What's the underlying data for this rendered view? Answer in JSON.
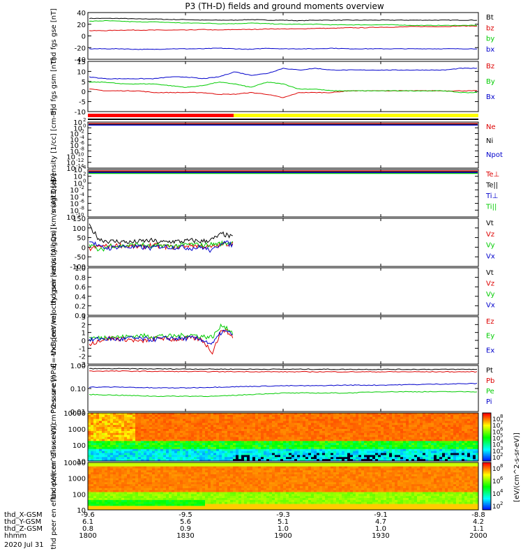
{
  "title": "P3 (TH-D) fields and ground moments overview",
  "time_axis": {
    "ticks": [
      {
        "hhmm": "1800",
        "x_gsm": "-9.6",
        "y_gsm": "6.1",
        "z_gsm": "0.8"
      },
      {
        "hhmm": "1830",
        "x_gsm": "-9.5",
        "y_gsm": "5.6",
        "z_gsm": "0.9"
      },
      {
        "hhmm": "1900",
        "x_gsm": "-9.3",
        "y_gsm": "5.1",
        "z_gsm": "1.0"
      },
      {
        "hhmm": "1930",
        "x_gsm": "-9.1",
        "y_gsm": "4.7",
        "z_gsm": "1.0"
      },
      {
        "hhmm": "2000",
        "x_gsm": "-8.8",
        "y_gsm": "4.2",
        "z_gsm": "1.1"
      }
    ],
    "row_labels": [
      "thd_X-GSM",
      "thd_Y-GSM",
      "thd_Z-GSM",
      "hhmm"
    ],
    "date": "2020 Jul 31"
  },
  "colorbar_label": "[eV/(cm^2-s-sr-eV)]",
  "chart_data": [
    {
      "type": "line",
      "ylabel": "thd fgs gse [nT]",
      "ylim": [
        -40,
        40
      ],
      "yticks": [
        "40",
        "20",
        "0",
        "-20",
        "-40"
      ],
      "series": [
        {
          "name": "Bt",
          "color": "#000000",
          "values": [
            30,
            30,
            30,
            29,
            29,
            28,
            28,
            27,
            27,
            27,
            28,
            27,
            27,
            26,
            27,
            27,
            27,
            27,
            27,
            27,
            27,
            27,
            27,
            27,
            27
          ]
        },
        {
          "name": "bz",
          "color": "#dd0000",
          "values": [
            9,
            9,
            10,
            10,
            10,
            10,
            10,
            11,
            10,
            11,
            11,
            12,
            12,
            12,
            13,
            13,
            14,
            14,
            15,
            15,
            16,
            16,
            16,
            17,
            17
          ]
        },
        {
          "name": "by",
          "color": "#00cc00",
          "values": [
            25,
            26,
            25,
            24,
            24,
            23,
            22,
            22,
            21,
            21,
            22,
            21,
            20,
            20,
            20,
            19,
            19,
            19,
            19,
            19,
            18,
            18,
            18,
            18,
            18
          ]
        },
        {
          "name": "bx",
          "color": "#0000cc",
          "values": [
            -22,
            -22,
            -22,
            -23,
            -23,
            -22,
            -22,
            -22,
            -21,
            -22,
            -23,
            -21,
            -22,
            -22,
            -22,
            -21,
            -22,
            -22,
            -22,
            -22,
            -22,
            -22,
            -22,
            -22,
            -22
          ]
        }
      ]
    },
    {
      "type": "line",
      "ylabel": "thd fgs gsm [nT]",
      "ylim": [
        -14,
        15
      ],
      "yticks": [
        "15",
        "10",
        "5",
        "0",
        "-5",
        "-10"
      ],
      "series": [
        {
          "name": "Bz",
          "color": "#dd0000",
          "values": [
            -1,
            -2,
            -2,
            -2,
            -3,
            -3,
            -3,
            -3,
            -4,
            -4,
            -3,
            -4,
            -6,
            -3,
            -3,
            -3,
            -2,
            -2,
            -2,
            -2,
            -2,
            -2,
            -2,
            -2,
            -2
          ]
        },
        {
          "name": "By",
          "color": "#00cc00",
          "values": [
            3,
            3,
            2,
            2,
            2,
            1,
            0,
            1,
            3,
            2,
            0,
            3,
            2,
            -1,
            -1,
            -2,
            -2,
            -2,
            -2,
            -2,
            -2,
            -2,
            -2,
            -3,
            -3
          ]
        },
        {
          "name": "Bx",
          "color": "#0000cc",
          "values": [
            6,
            5,
            5,
            5,
            5,
            6,
            6,
            5,
            6,
            9,
            7,
            8,
            11,
            10,
            11,
            10,
            10,
            10,
            10,
            10,
            10,
            10,
            10,
            11,
            11
          ]
        }
      ]
    },
    {
      "type": "log-line",
      "ylabel": "Density [1/cc] [cm-3]",
      "yticks": [
        "10^2",
        "10^0",
        "10^-2",
        "10^-4",
        "10^-6",
        "10^-8",
        "10^-10",
        "10^-12",
        "10^-14"
      ],
      "series": [
        {
          "name": "Ne",
          "color": "#dd0000"
        },
        {
          "name": "Ni",
          "color": "#000000"
        },
        {
          "name": "Npot",
          "color": "#0000cc"
        }
      ]
    },
    {
      "type": "log-line",
      "ylabel": "magt3 [eV]",
      "yticks": [
        "10^4",
        "10^2",
        "10^0",
        "10^-2",
        "10^-4",
        "10^-6",
        "10^-8",
        "10^-10"
      ],
      "series": [
        {
          "name": "Te⊥",
          "color": "#dd0000"
        },
        {
          "name": "Te||",
          "color": "#000000"
        },
        {
          "name": "Ti⊥",
          "color": "#0000cc"
        },
        {
          "name": "Ti||",
          "color": "#00cc00"
        }
      ]
    },
    {
      "type": "line",
      "ylabel": "thd peir velocity gsm [km/s (All Qs)]",
      "ylim": [
        -100,
        150
      ],
      "yticks": [
        "150",
        "100",
        "50",
        "0",
        "-50",
        "-100"
      ],
      "data_end_fraction": 0.37,
      "series": [
        {
          "name": "Vt",
          "color": "#000000",
          "values": [
            110,
            40,
            30,
            30,
            25,
            30,
            35,
            25,
            30,
            30,
            35,
            30,
            40,
            70,
            50
          ]
        },
        {
          "name": "Vz",
          "color": "#dd0000",
          "values": [
            -10,
            5,
            5,
            10,
            5,
            0,
            10,
            5,
            0,
            5,
            10,
            5,
            0,
            15,
            20
          ]
        },
        {
          "name": "Vy",
          "color": "#00cc00",
          "values": [
            20,
            -20,
            10,
            5,
            10,
            15,
            0,
            10,
            5,
            10,
            15,
            10,
            15,
            20,
            25
          ]
        },
        {
          "name": "Vx",
          "color": "#0000cc",
          "values": [
            40,
            0,
            -5,
            5,
            0,
            0,
            -5,
            5,
            0,
            0,
            -5,
            0,
            -20,
            30,
            10
          ]
        }
      ]
    },
    {
      "type": "line",
      "ylabel": "thd peer velocity gsm [km/s (All Qs)]",
      "ylim": [
        0,
        1
      ],
      "yticks": [
        "1.0",
        "0.8",
        "0.6",
        "0.4",
        "0.2",
        "0.0"
      ],
      "series": [
        {
          "name": "Vt",
          "color": "#000000"
        },
        {
          "name": "Vz",
          "color": "#dd0000"
        },
        {
          "name": "Vy",
          "color": "#00cc00"
        },
        {
          "name": "Vx",
          "color": "#0000cc"
        }
      ]
    },
    {
      "type": "line",
      "ylabel": "E=-VxB [mV/m]",
      "ylim": [
        -3,
        3
      ],
      "yticks": [
        "3",
        "2",
        "1",
        "0",
        "-1",
        "-2",
        "-3"
      ],
      "data_end_fraction": 0.37,
      "series": [
        {
          "name": "Ez",
          "color": "#dd0000",
          "values": [
            -0.5,
            0,
            0.3,
            0.2,
            0.1,
            -0.2,
            0.2,
            0.3,
            0.1,
            0.2,
            0.3,
            0.1,
            -1.5,
            1.5,
            0.5
          ]
        },
        {
          "name": "Ey",
          "color": "#00cc00",
          "values": [
            0.3,
            0.3,
            0.5,
            0.4,
            0.5,
            0.6,
            0.5,
            0.6,
            0.5,
            0.6,
            0.7,
            0.5,
            0.4,
            2.0,
            1.0
          ]
        },
        {
          "name": "Ex",
          "color": "#0000cc",
          "values": [
            0,
            0.2,
            0.2,
            0.1,
            0.3,
            0.2,
            0.1,
            0.2,
            0.3,
            0.2,
            0.3,
            0.1,
            -0.5,
            1.2,
            0.8
          ]
        }
      ]
    },
    {
      "type": "log-line",
      "ylabel": "Pressure [nPa]",
      "ylim_log10": [
        -2,
        0.1
      ],
      "yticks": [
        "1.00",
        "0.10",
        "0.01"
      ],
      "series": [
        {
          "name": "Pt",
          "color": "#000000",
          "values": [
            0.9,
            0.9,
            0.88,
            0.87,
            0.86,
            0.85,
            0.85,
            0.85,
            0.84,
            0.84,
            0.84,
            0.84,
            0.84
          ]
        },
        {
          "name": "Pb",
          "color": "#dd0000",
          "values": [
            0.7,
            0.7,
            0.68,
            0.67,
            0.66,
            0.66,
            0.65,
            0.65,
            0.65,
            0.65,
            0.65,
            0.65,
            0.65
          ]
        },
        {
          "name": "Pe",
          "color": "#00cc00",
          "values": [
            0.06,
            0.055,
            0.05,
            0.05,
            0.05,
            0.06,
            0.07,
            0.07,
            0.07,
            0.08,
            0.08,
            0.08,
            0.08
          ]
        },
        {
          "name": "Pi",
          "color": "#0000cc",
          "values": [
            0.13,
            0.13,
            0.12,
            0.12,
            0.13,
            0.14,
            0.15,
            0.15,
            0.16,
            0.16,
            0.17,
            0.18,
            0.19
          ]
        }
      ]
    },
    {
      "type": "heatmap",
      "ylabel": "thd peir en eflux eV/(cm^2-s-sr-eV)",
      "yticks": [
        "10000",
        "1000",
        "100",
        "10"
      ],
      "cbar_ticks": [
        "10^8",
        "10^7",
        "10^6",
        "10^5",
        "10^4",
        "10^3",
        "10^2"
      ]
    },
    {
      "type": "heatmap",
      "ylabel": "thd peer en eflux eV/(cm^2-s-sr-eV)",
      "yticks": [
        "10000",
        "1000",
        "100",
        "10"
      ],
      "cbar_ticks": [
        "10^8",
        "10^6",
        "10^4",
        "10^2"
      ]
    }
  ]
}
